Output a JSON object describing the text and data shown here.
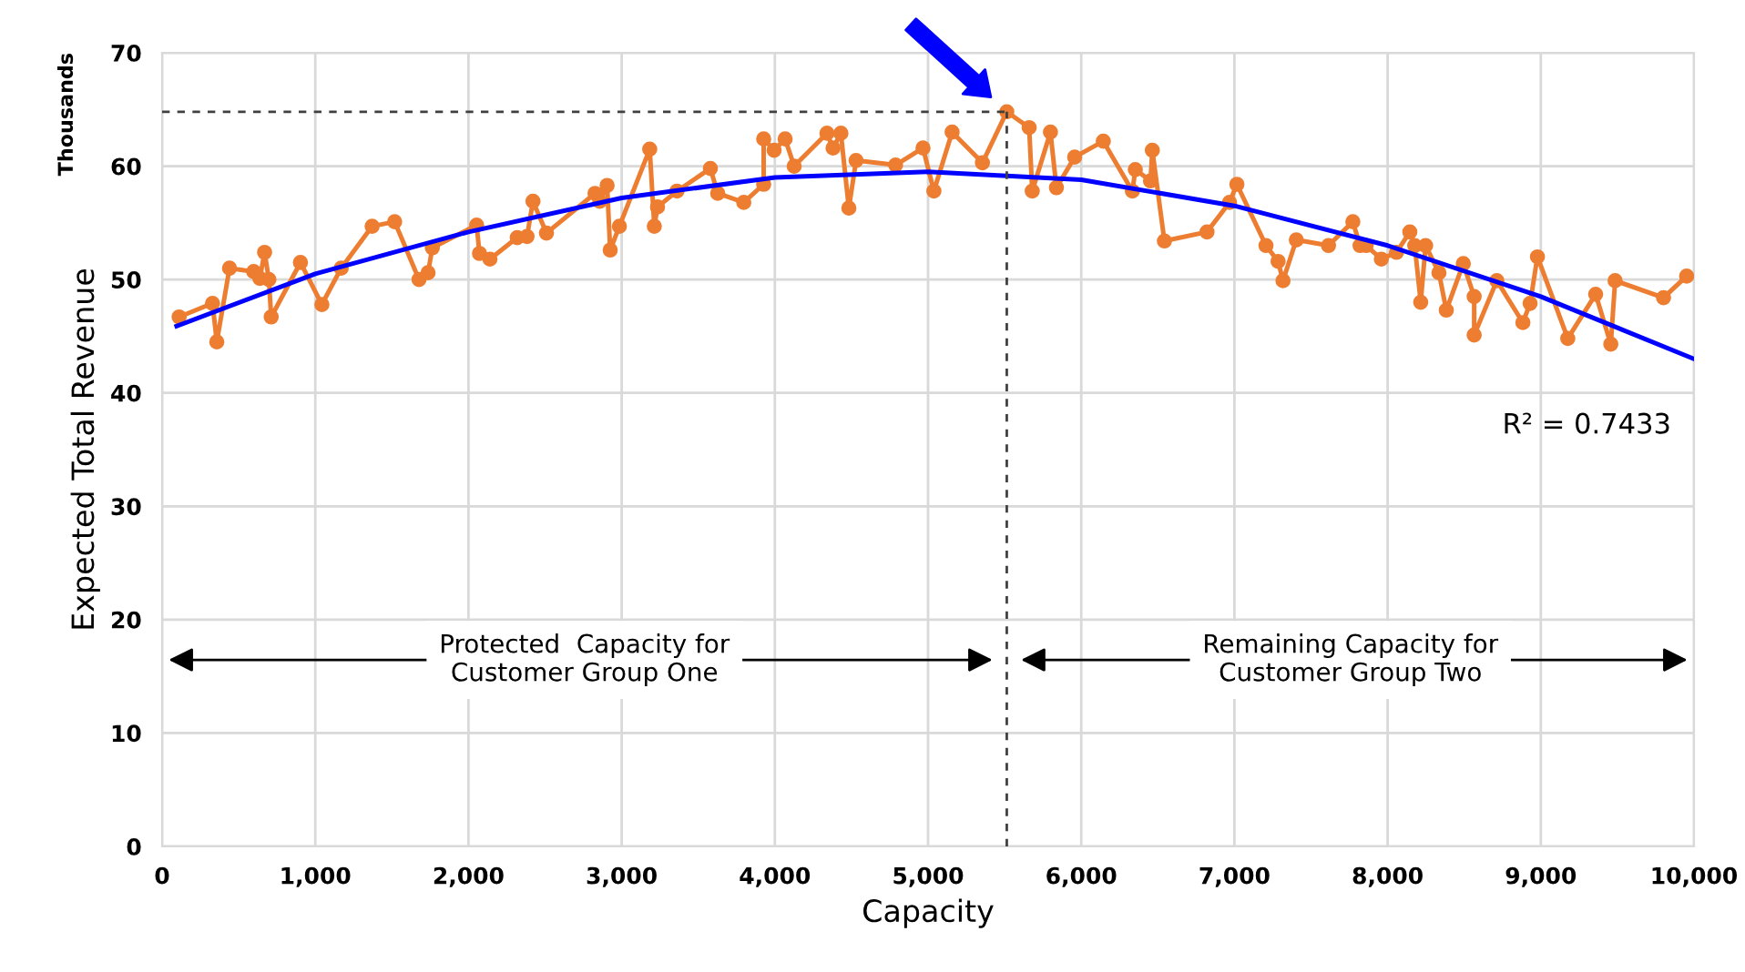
{
  "chart_data": {
    "type": "line",
    "xlabel": "Capacity",
    "ylabel": "Expected Total Revenue",
    "xlim": [
      0,
      10000
    ],
    "ylim": [
      0,
      70
    ],
    "xticks": [
      0,
      {
        "value": 1000,
        "label": "1,000"
      },
      {
        "value": 2000,
        "label": "2,000"
      },
      {
        "value": 3000,
        "label": "3,000"
      },
      {
        "value": 4000,
        "label": "4,000"
      },
      {
        "value": 5000,
        "label": "5,000"
      },
      {
        "value": 6000,
        "label": "6,000"
      },
      {
        "value": 7000,
        "label": "7,000"
      },
      {
        "value": 8000,
        "label": "8,000"
      },
      {
        "value": 9000,
        "label": "9,000"
      },
      {
        "value": 10000,
        "label": "10,000"
      }
    ],
    "yticks": [
      0,
      10,
      20,
      30,
      40,
      50,
      60,
      70
    ],
    "grid": true,
    "legend": false,
    "series": [
      {
        "color": "#ed7d31",
        "marker": "circle",
        "x": [
          111,
          329,
          357,
          440,
          598,
          638,
          669,
          697,
          712,
          903,
          1043,
          1169,
          1371,
          1518,
          1677,
          1736,
          1764,
          2053,
          2072,
          2140,
          2318,
          2382,
          2421,
          2509,
          2826,
          2857,
          2905,
          2925,
          2985,
          3183,
          3213,
          3234,
          3361,
          3579,
          3627,
          3797,
          3927,
          3927,
          3995,
          4067,
          4126,
          4340,
          4380,
          4431,
          4483,
          4530,
          4788,
          4967,
          5038,
          5157,
          5355,
          5514,
          5660,
          5680,
          5799,
          5838,
          5957,
          6144,
          6334,
          6353,
          6452,
          6464,
          6543,
          6821,
          6968,
          7016,
          7206,
          7285,
          7317,
          7404,
          7614,
          7773,
          7820,
          7860,
          7959,
          8058,
          8145,
          8177,
          8216,
          8248,
          8335,
          8383,
          8494,
          8565,
          8565,
          8713,
          8883,
          8930,
          8978,
          9176,
          9358,
          9457,
          9485,
          9801,
          9952
        ],
        "values": [
          46.7,
          47.9,
          44.5,
          51.0,
          50.7,
          50.1,
          52.4,
          50.0,
          46.7,
          51.5,
          47.8,
          51.0,
          54.7,
          55.1,
          50.0,
          50.6,
          52.8,
          54.8,
          52.3,
          51.8,
          53.7,
          53.8,
          56.9,
          54.1,
          57.6,
          56.9,
          58.3,
          52.6,
          54.7,
          61.5,
          54.7,
          56.4,
          57.8,
          59.8,
          57.6,
          56.8,
          58.4,
          62.4,
          61.4,
          62.4,
          60.0,
          62.9,
          61.6,
          62.9,
          56.3,
          60.5,
          60.1,
          61.6,
          57.8,
          63.0,
          60.3,
          64.8,
          63.4,
          57.8,
          63.0,
          58.1,
          60.8,
          62.2,
          57.8,
          59.7,
          58.7,
          61.4,
          53.4,
          54.2,
          56.8,
          58.4,
          53.0,
          51.6,
          49.9,
          53.5,
          53.0,
          55.1,
          53.0,
          53.0,
          51.8,
          52.4,
          54.2,
          53.0,
          48.0,
          53.0,
          50.6,
          47.3,
          51.4,
          48.5,
          45.1,
          49.9,
          46.2,
          47.9,
          52.0,
          44.8,
          48.7,
          44.3,
          49.9,
          48.4,
          50.3
        ]
      },
      {
        "color": "#0000ff",
        "marker": "none",
        "x": [
          95,
          1000,
          2000,
          3000,
          4000,
          5000,
          6000,
          7000,
          8000,
          9000,
          10000
        ],
        "values": [
          45.9,
          50.5,
          54.2,
          57.2,
          59.0,
          59.5,
          58.8,
          56.5,
          53.0,
          48.5,
          43.0
        ]
      },
      {
        "color": "#404040",
        "marker": "none",
        "line_style": "dashed",
        "x": [
          0,
          5514
        ],
        "values": [
          64.8,
          64.8
        ]
      },
      {
        "color": "#404040",
        "marker": "none",
        "line_style": "dashed",
        "x": [
          5514,
          5514
        ],
        "values": [
          0,
          64.8
        ]
      }
    ],
    "annotations": [
      "Thousands",
      "Protected  Capacity for\nCustomer Group One",
      "Remaining Capacity for\nCustomer Group Two",
      "R² = 0.7433"
    ]
  }
}
